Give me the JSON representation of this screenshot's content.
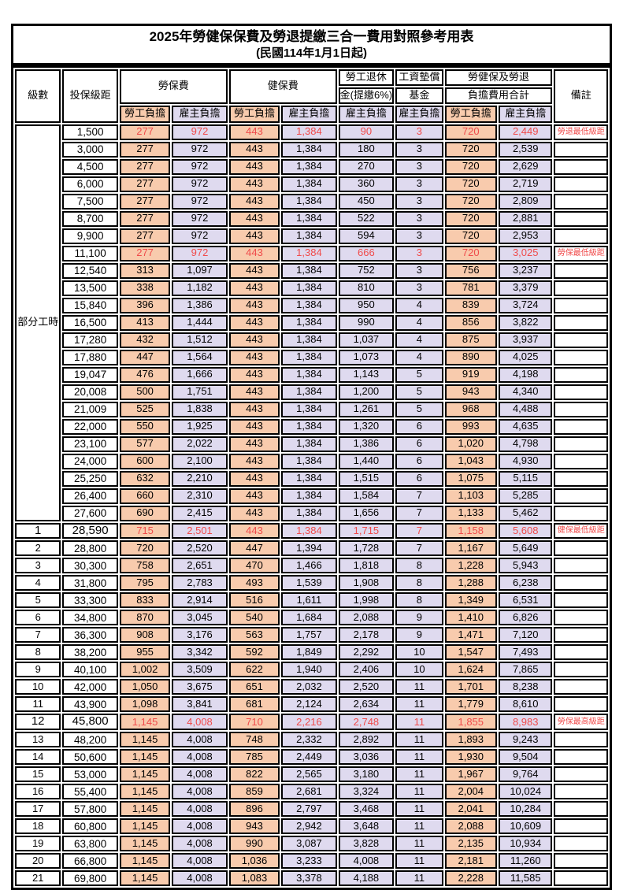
{
  "title": "2025年勞健保保費及勞退提繳三合一費用對照參考用表",
  "subtitle": "(民國114年1月1日起)",
  "colors": {
    "employee_col_bg": "#F8CBAD",
    "employer_col_bg": "#DFDAEF",
    "highlight_red": "#F04B4B",
    "border": "#000000"
  },
  "header": {
    "level": "級數",
    "bracket": "投保級距",
    "labor_ins": "勞保費",
    "health_ins": "健保費",
    "pension_line1": "勞工退休",
    "pension_line2": "金(提繳6%)",
    "wage_fund_line1": "工資墊償",
    "wage_fund_line2": "基金",
    "total_line1": "勞健保及勞退",
    "total_line2": "負擔費用合計",
    "remark": "備註",
    "employee": "勞工負擔",
    "employer": "雇主負擔"
  },
  "rows": [
    {
      "level": "部分工時",
      "level_rowspan": 23,
      "bracket": "1,500",
      "values": [
        "277",
        "972",
        "443",
        "1,384",
        "90",
        "3",
        "720",
        "2,449"
      ],
      "remark": "勞退最低級距",
      "red": true
    },
    {
      "bracket": "3,000",
      "values": [
        "277",
        "972",
        "443",
        "1,384",
        "180",
        "3",
        "720",
        "2,539"
      ],
      "remark": ""
    },
    {
      "bracket": "4,500",
      "values": [
        "277",
        "972",
        "443",
        "1,384",
        "270",
        "3",
        "720",
        "2,629"
      ],
      "remark": ""
    },
    {
      "bracket": "6,000",
      "values": [
        "277",
        "972",
        "443",
        "1,384",
        "360",
        "3",
        "720",
        "2,719"
      ],
      "remark": ""
    },
    {
      "bracket": "7,500",
      "values": [
        "277",
        "972",
        "443",
        "1,384",
        "450",
        "3",
        "720",
        "2,809"
      ],
      "remark": ""
    },
    {
      "bracket": "8,700",
      "values": [
        "277",
        "972",
        "443",
        "1,384",
        "522",
        "3",
        "720",
        "2,881"
      ],
      "remark": ""
    },
    {
      "bracket": "9,900",
      "values": [
        "277",
        "972",
        "443",
        "1,384",
        "594",
        "3",
        "720",
        "2,953"
      ],
      "remark": ""
    },
    {
      "bracket": "11,100",
      "values": [
        "277",
        "972",
        "443",
        "1,384",
        "666",
        "3",
        "720",
        "3,025"
      ],
      "remark": "勞保最低級距",
      "red": true
    },
    {
      "bracket": "12,540",
      "values": [
        "313",
        "1,097",
        "443",
        "1,384",
        "752",
        "3",
        "756",
        "3,237"
      ],
      "remark": ""
    },
    {
      "bracket": "13,500",
      "values": [
        "338",
        "1,182",
        "443",
        "1,384",
        "810",
        "3",
        "781",
        "3,379"
      ],
      "remark": ""
    },
    {
      "bracket": "15,840",
      "values": [
        "396",
        "1,386",
        "443",
        "1,384",
        "950",
        "4",
        "839",
        "3,724"
      ],
      "remark": ""
    },
    {
      "bracket": "16,500",
      "values": [
        "413",
        "1,444",
        "443",
        "1,384",
        "990",
        "4",
        "856",
        "3,822"
      ],
      "remark": ""
    },
    {
      "bracket": "17,280",
      "values": [
        "432",
        "1,512",
        "443",
        "1,384",
        "1,037",
        "4",
        "875",
        "3,937"
      ],
      "remark": ""
    },
    {
      "bracket": "17,880",
      "values": [
        "447",
        "1,564",
        "443",
        "1,384",
        "1,073",
        "4",
        "890",
        "4,025"
      ],
      "remark": ""
    },
    {
      "bracket": "19,047",
      "values": [
        "476",
        "1,666",
        "443",
        "1,384",
        "1,143",
        "5",
        "919",
        "4,198"
      ],
      "remark": ""
    },
    {
      "bracket": "20,008",
      "values": [
        "500",
        "1,751",
        "443",
        "1,384",
        "1,200",
        "5",
        "943",
        "4,340"
      ],
      "remark": ""
    },
    {
      "bracket": "21,009",
      "values": [
        "525",
        "1,838",
        "443",
        "1,384",
        "1,261",
        "5",
        "968",
        "4,488"
      ],
      "remark": ""
    },
    {
      "bracket": "22,000",
      "values": [
        "550",
        "1,925",
        "443",
        "1,384",
        "1,320",
        "6",
        "993",
        "4,635"
      ],
      "remark": ""
    },
    {
      "bracket": "23,100",
      "values": [
        "577",
        "2,022",
        "443",
        "1,384",
        "1,386",
        "6",
        "1,020",
        "4,798"
      ],
      "remark": ""
    },
    {
      "bracket": "24,000",
      "values": [
        "600",
        "2,100",
        "443",
        "1,384",
        "1,440",
        "6",
        "1,043",
        "4,930"
      ],
      "remark": ""
    },
    {
      "bracket": "25,250",
      "values": [
        "632",
        "2,210",
        "443",
        "1,384",
        "1,515",
        "6",
        "1,075",
        "5,115"
      ],
      "remark": ""
    },
    {
      "bracket": "26,400",
      "values": [
        "660",
        "2,310",
        "443",
        "1,384",
        "1,584",
        "7",
        "1,103",
        "5,285"
      ],
      "remark": ""
    },
    {
      "bracket": "27,600",
      "values": [
        "690",
        "2,415",
        "443",
        "1,384",
        "1,656",
        "7",
        "1,133",
        "5,462"
      ],
      "remark": ""
    },
    {
      "level": "1",
      "bracket": "28,590",
      "values": [
        "715",
        "2,501",
        "443",
        "1,384",
        "1,715",
        "7",
        "1,158",
        "5,608"
      ],
      "remark": "健保最低級距",
      "red": true,
      "big": true
    },
    {
      "level": "2",
      "bracket": "28,800",
      "values": [
        "720",
        "2,520",
        "447",
        "1,394",
        "1,728",
        "7",
        "1,167",
        "5,649"
      ],
      "remark": ""
    },
    {
      "level": "3",
      "bracket": "30,300",
      "values": [
        "758",
        "2,651",
        "470",
        "1,466",
        "1,818",
        "8",
        "1,228",
        "5,943"
      ],
      "remark": ""
    },
    {
      "level": "4",
      "bracket": "31,800",
      "values": [
        "795",
        "2,783",
        "493",
        "1,539",
        "1,908",
        "8",
        "1,288",
        "6,238"
      ],
      "remark": ""
    },
    {
      "level": "5",
      "bracket": "33,300",
      "values": [
        "833",
        "2,914",
        "516",
        "1,611",
        "1,998",
        "8",
        "1,349",
        "6,531"
      ],
      "remark": ""
    },
    {
      "level": "6",
      "bracket": "34,800",
      "values": [
        "870",
        "3,045",
        "540",
        "1,684",
        "2,088",
        "9",
        "1,410",
        "6,826"
      ],
      "remark": ""
    },
    {
      "level": "7",
      "bracket": "36,300",
      "values": [
        "908",
        "3,176",
        "563",
        "1,757",
        "2,178",
        "9",
        "1,471",
        "7,120"
      ],
      "remark": ""
    },
    {
      "level": "8",
      "bracket": "38,200",
      "values": [
        "955",
        "3,342",
        "592",
        "1,849",
        "2,292",
        "10",
        "1,547",
        "7,493"
      ],
      "remark": ""
    },
    {
      "level": "9",
      "bracket": "40,100",
      "values": [
        "1,002",
        "3,509",
        "622",
        "1,940",
        "2,406",
        "10",
        "1,624",
        "7,865"
      ],
      "remark": ""
    },
    {
      "level": "10",
      "bracket": "42,000",
      "values": [
        "1,050",
        "3,675",
        "651",
        "2,032",
        "2,520",
        "11",
        "1,701",
        "8,238"
      ],
      "remark": ""
    },
    {
      "level": "11",
      "bracket": "43,900",
      "values": [
        "1,098",
        "3,841",
        "681",
        "2,124",
        "2,634",
        "11",
        "1,779",
        "8,610"
      ],
      "remark": ""
    },
    {
      "level": "12",
      "bracket": "45,800",
      "values": [
        "1,145",
        "4,008",
        "710",
        "2,216",
        "2,748",
        "11",
        "1,855",
        "8,983"
      ],
      "remark": "勞保最高級距",
      "red": true,
      "big": true
    },
    {
      "level": "13",
      "bracket": "48,200",
      "values": [
        "1,145",
        "4,008",
        "748",
        "2,332",
        "2,892",
        "11",
        "1,893",
        "9,243"
      ],
      "remark": ""
    },
    {
      "level": "14",
      "bracket": "50,600",
      "values": [
        "1,145",
        "4,008",
        "785",
        "2,449",
        "3,036",
        "11",
        "1,930",
        "9,504"
      ],
      "remark": ""
    },
    {
      "level": "15",
      "bracket": "53,000",
      "values": [
        "1,145",
        "4,008",
        "822",
        "2,565",
        "3,180",
        "11",
        "1,967",
        "9,764"
      ],
      "remark": ""
    },
    {
      "level": "16",
      "bracket": "55,400",
      "values": [
        "1,145",
        "4,008",
        "859",
        "2,681",
        "3,324",
        "11",
        "2,004",
        "10,024"
      ],
      "remark": ""
    },
    {
      "level": "17",
      "bracket": "57,800",
      "values": [
        "1,145",
        "4,008",
        "896",
        "2,797",
        "3,468",
        "11",
        "2,041",
        "10,284"
      ],
      "remark": ""
    },
    {
      "level": "18",
      "bracket": "60,800",
      "values": [
        "1,145",
        "4,008",
        "943",
        "2,942",
        "3,648",
        "11",
        "2,088",
        "10,609"
      ],
      "remark": ""
    },
    {
      "level": "19",
      "bracket": "63,800",
      "values": [
        "1,145",
        "4,008",
        "990",
        "3,087",
        "3,828",
        "11",
        "2,135",
        "10,934"
      ],
      "remark": ""
    },
    {
      "level": "20",
      "bracket": "66,800",
      "values": [
        "1,145",
        "4,008",
        "1,036",
        "3,233",
        "4,008",
        "11",
        "2,181",
        "11,260"
      ],
      "remark": ""
    },
    {
      "level": "21",
      "bracket": "69,800",
      "values": [
        "1,145",
        "4,008",
        "1,083",
        "3,378",
        "4,188",
        "11",
        "2,228",
        "11,585"
      ],
      "remark": ""
    }
  ]
}
